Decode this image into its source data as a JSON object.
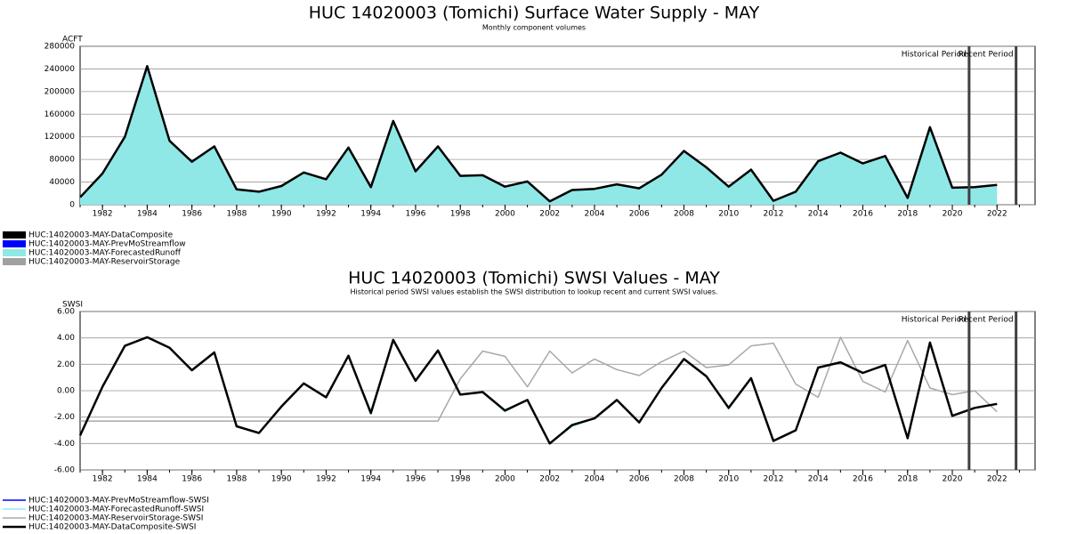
{
  "chart_data": [
    {
      "type": "area",
      "title": "HUC 14020003 (Tomichi) Surface Water Supply - MAY",
      "subtitle": "Monthly component volumes",
      "y_label": "ACFT",
      "x": [
        1981,
        1982,
        1983,
        1984,
        1985,
        1986,
        1987,
        1988,
        1989,
        1990,
        1991,
        1992,
        1993,
        1994,
        1995,
        1996,
        1997,
        1998,
        1999,
        2000,
        2001,
        2002,
        2003,
        2004,
        2005,
        2006,
        2007,
        2008,
        2009,
        2010,
        2011,
        2012,
        2013,
        2014,
        2015,
        2016,
        2017,
        2018,
        2019,
        2020,
        2021,
        2022
      ],
      "series": [
        {
          "name": "HUC:14020003-MAY-DataComposite",
          "color": "#000000",
          "style": "line",
          "line_width": 2.5,
          "values": [
            13000,
            55000,
            120000,
            245000,
            113000,
            76000,
            103000,
            27000,
            23000,
            33000,
            57000,
            45000,
            101000,
            31000,
            148000,
            59000,
            103000,
            51000,
            52000,
            32000,
            41000,
            6000,
            26000,
            28000,
            36000,
            29000,
            53000,
            95000,
            66000,
            32000,
            62000,
            7000,
            23000,
            77000,
            92000,
            73000,
            86000,
            12000,
            137000,
            30000,
            31000,
            35000
          ]
        },
        {
          "name": "HUC:14020003-MAY-PrevMoStreamflow",
          "color": "#0000ff"
        },
        {
          "name": "HUC:14020003-MAY-ForecastedRunoff",
          "color": "#8fe8e6",
          "style": "area",
          "values": [
            13000,
            55000,
            120000,
            245000,
            113000,
            76000,
            103000,
            27000,
            23000,
            33000,
            57000,
            45000,
            101000,
            31000,
            148000,
            59000,
            103000,
            51000,
            52000,
            32000,
            41000,
            6000,
            26000,
            28000,
            36000,
            29000,
            53000,
            95000,
            66000,
            32000,
            62000,
            7000,
            23000,
            77000,
            92000,
            73000,
            86000,
            12000,
            137000,
            30000,
            31000,
            35000
          ]
        },
        {
          "name": "HUC:14020003-MAY-ReservoirStorage",
          "color": "#a0a0a0"
        }
      ],
      "legend_marker": "box",
      "xlim": [
        1981,
        2023.7
      ],
      "xticks": [
        1982,
        1984,
        1986,
        1988,
        1990,
        1992,
        1994,
        1996,
        1998,
        2000,
        2002,
        2004,
        2006,
        2008,
        2010,
        2012,
        2014,
        2016,
        2018,
        2020,
        2022
      ],
      "ylim": [
        0,
        280000
      ],
      "yticks": [
        0,
        40000,
        80000,
        120000,
        160000,
        200000,
        240000,
        280000
      ],
      "grid": true,
      "period_lines": [
        2020.75,
        2022.85
      ],
      "period_labels": [
        "Historical Period",
        "Recent Period"
      ]
    },
    {
      "type": "line",
      "title": "HUC 14020003 (Tomichi) SWSI Values - MAY",
      "subtitle": "Historical period SWSI values establish the SWSI distribution to lookup recent and current SWSI values.",
      "y_label": "SWSI",
      "x": [
        1981,
        1982,
        1983,
        1984,
        1985,
        1986,
        1987,
        1988,
        1989,
        1990,
        1991,
        1992,
        1993,
        1994,
        1995,
        1996,
        1997,
        1998,
        1999,
        2000,
        2001,
        2002,
        2003,
        2004,
        2005,
        2006,
        2007,
        2008,
        2009,
        2010,
        2011,
        2012,
        2013,
        2014,
        2015,
        2016,
        2017,
        2018,
        2019,
        2020,
        2021,
        2022
      ],
      "series": [
        {
          "name": "HUC:14020003-MAY-PrevMoStreamflow-SWSI",
          "color": "#0000ff"
        },
        {
          "name": "HUC:14020003-MAY-ForecastedRunoff-SWSI",
          "color": "#66e0ee",
          "style": "line",
          "line_width": 1,
          "values": [
            -3.4,
            0.3,
            3.4,
            4.05,
            3.25,
            1.55,
            2.9,
            -2.6,
            -3.2,
            -1.2,
            0.55,
            -0.5,
            2.65,
            -1.5,
            3.85,
            0.75,
            3.05,
            -0.3,
            -0.1,
            -1.6,
            -0.7,
            -4.0,
            -2.7,
            -2.1,
            -0.7,
            -2.4,
            0.2,
            2.4,
            1.1,
            -1.4,
            0.95,
            -3.8,
            -3.0,
            1.75,
            2.15,
            1.35,
            1.95,
            -3.6,
            3.65,
            -1.9,
            -1.3,
            -1.0
          ]
        },
        {
          "name": "HUC:14020003-MAY-ReservoirStorage-SWSI",
          "color": "#a8a8a8",
          "style": "line",
          "line_width": 1.5,
          "values": [
            -2.3,
            -2.3,
            -2.3,
            -2.3,
            -2.3,
            -2.3,
            -2.3,
            -2.3,
            -2.3,
            -2.3,
            -2.3,
            -2.3,
            -2.3,
            -2.3,
            -2.3,
            -2.3,
            -2.3,
            0.9,
            3.0,
            2.6,
            0.3,
            3.0,
            1.35,
            2.4,
            1.6,
            1.15,
            2.2,
            3.0,
            1.75,
            1.95,
            3.4,
            3.6,
            0.5,
            -0.5,
            4.05,
            0.7,
            -0.1,
            3.8,
            0.2,
            -0.3,
            0.0,
            -1.6
          ]
        },
        {
          "name": "HUC:14020003-MAY-DataComposite-SWSI",
          "color": "#000000",
          "style": "line",
          "line_width": 2.5,
          "values": [
            -3.4,
            0.3,
            3.4,
            4.05,
            3.25,
            1.55,
            2.9,
            -2.7,
            -3.2,
            -1.2,
            0.55,
            -0.5,
            2.65,
            -1.7,
            3.85,
            0.75,
            3.05,
            -0.3,
            -0.1,
            -1.5,
            -0.7,
            -4.0,
            -2.6,
            -2.1,
            -0.7,
            -2.4,
            0.2,
            2.4,
            1.1,
            -1.3,
            0.95,
            -3.8,
            -3.0,
            1.75,
            2.15,
            1.35,
            1.95,
            -3.6,
            3.65,
            -1.9,
            -1.3,
            -1.0
          ]
        }
      ],
      "legend_marker": "line",
      "xlim": [
        1981,
        2023.7
      ],
      "xticks": [
        1982,
        1984,
        1986,
        1988,
        1990,
        1992,
        1994,
        1996,
        1998,
        2000,
        2002,
        2004,
        2006,
        2008,
        2010,
        2012,
        2014,
        2016,
        2018,
        2020,
        2022
      ],
      "ylim": [
        -6,
        6
      ],
      "yticks": [
        {
          "value": -6,
          "label": "-6.00"
        },
        {
          "value": -4,
          "label": "-4.00"
        },
        {
          "value": -2,
          "label": "-2.00"
        },
        {
          "value": 0,
          "label": "0.00"
        },
        {
          "value": 2,
          "label": "2.00"
        },
        {
          "value": 4,
          "label": "4.00"
        },
        {
          "value": 6,
          "label": "6.00"
        }
      ],
      "grid": true,
      "period_lines": [
        2020.75,
        2022.85
      ],
      "period_labels": [
        "Historical Period",
        "Recent Period"
      ]
    }
  ]
}
